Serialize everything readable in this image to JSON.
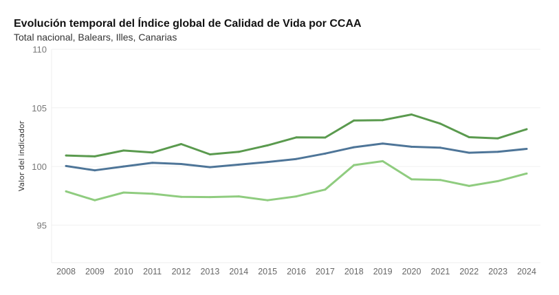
{
  "chart_data": {
    "type": "line",
    "title": "Evolución temporal del Índice global de Calidad de Vida por CCAA",
    "subtitle": "Total nacional, Balears, Illes, Canarias",
    "xlabel": "",
    "ylabel": "Valor del indicador",
    "ylim": [
      91.8,
      110
    ],
    "yticks": [
      95,
      100,
      105,
      110
    ],
    "grid": true,
    "x": [
      "2008",
      "2009",
      "2010",
      "2011",
      "2012",
      "2013",
      "2014",
      "2015",
      "2016",
      "2017",
      "2018",
      "2019",
      "2020",
      "2021",
      "2022",
      "2023",
      "2024"
    ],
    "series": [
      {
        "color": "#5a9a4e",
        "values": [
          100.94,
          100.86,
          101.36,
          101.19,
          101.91,
          101.03,
          101.25,
          101.8,
          102.48,
          102.47,
          103.92,
          103.95,
          104.43,
          103.65,
          102.5,
          102.4,
          103.18
        ]
      },
      {
        "color": "#4e7598",
        "values": [
          100.04,
          99.67,
          100.0,
          100.31,
          100.21,
          99.94,
          100.16,
          100.38,
          100.64,
          101.1,
          101.64,
          101.95,
          101.68,
          101.6,
          101.17,
          101.25,
          101.5
        ]
      },
      {
        "color": "#8fcc7f",
        "values": [
          97.88,
          97.12,
          97.78,
          97.68,
          97.41,
          97.39,
          97.45,
          97.12,
          97.45,
          98.03,
          100.12,
          100.45,
          98.91,
          98.85,
          98.34,
          98.75,
          99.4
        ]
      }
    ]
  }
}
